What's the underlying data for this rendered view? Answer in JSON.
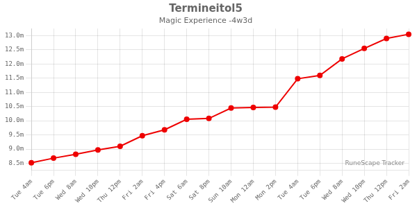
{
  "chart_data": {
    "type": "line",
    "title": "Termineitol5",
    "subtitle": "Magic Experience -4w3d",
    "annotations": [
      "RuneScape Tracker"
    ],
    "categories": [
      "Tue 4am",
      "Tue 6pm",
      "Wed 8am",
      "Wed 10pm",
      "Thu 12pm",
      "Fri 2am",
      "Fri 4pm",
      "Sat 6am",
      "Sat 8pm",
      "Sun 10am",
      "Mon 12am",
      "Mon 2pm",
      "Tue 4am",
      "Tue 6pm",
      "Wed 8am",
      "Wed 10pm",
      "Thu 12pm",
      "Fri 2am"
    ],
    "values": [
      8.52,
      8.68,
      8.82,
      8.97,
      9.1,
      9.47,
      9.68,
      10.05,
      10.08,
      10.45,
      10.47,
      10.48,
      11.48,
      11.6,
      12.18,
      12.55,
      12.9,
      13.05
    ],
    "color": "#ee0000",
    "marker": "circle",
    "ylim": [
      8.25,
      13.25
    ],
    "yticks": [
      {
        "value": 8.5,
        "label": "8.5m"
      },
      {
        "value": 9.0,
        "label": "9.0m"
      },
      {
        "value": 9.5,
        "label": "9.5m"
      },
      {
        "value": 10.0,
        "label": "10.0m"
      },
      {
        "value": 10.5,
        "label": "10.5m"
      },
      {
        "value": 11.0,
        "label": "11.0m"
      },
      {
        "value": 11.5,
        "label": "11.5m"
      },
      {
        "value": 12.0,
        "label": "12.0m"
      },
      {
        "value": 12.5,
        "label": "12.5m"
      },
      {
        "value": 13.0,
        "label": "13.0m"
      }
    ],
    "grid": true
  }
}
